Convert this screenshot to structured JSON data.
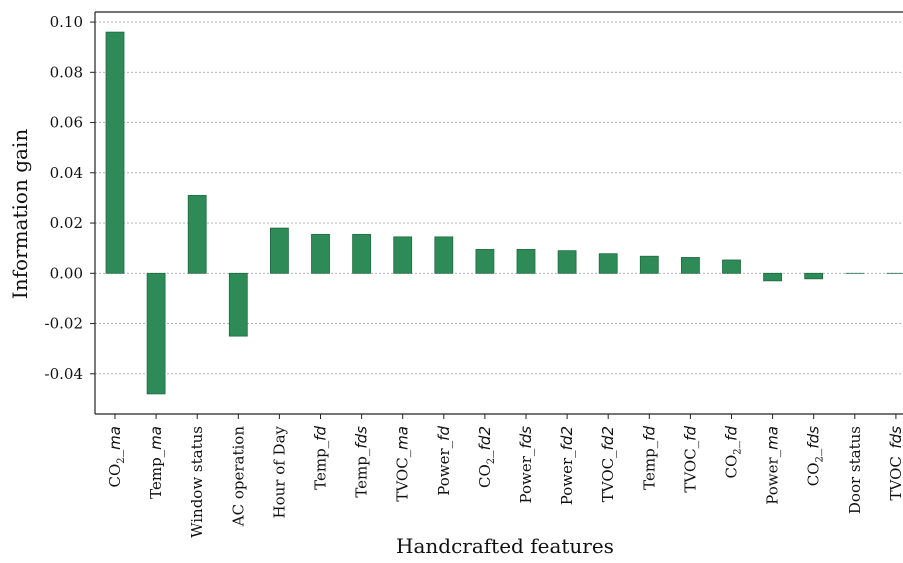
{
  "chart_data": {
    "type": "bar",
    "title": "",
    "xlabel": "Handcrafted features",
    "ylabel": "Information gain",
    "ylim": [
      -0.056,
      0.104
    ],
    "yticks": [
      "0.10",
      "0.08",
      "0.06",
      "0.04",
      "0.02",
      "0.00",
      "-0.02",
      "-0.04"
    ],
    "ytick_values": [
      0.1,
      0.08,
      0.06,
      0.04,
      0.02,
      0.0,
      -0.02,
      -0.04
    ],
    "grid": "horizontal dotted",
    "bar_color": "#2e8b57",
    "bar_edge_color": "#1f6b40",
    "categories": [
      {
        "label": "CO",
        "sub": "2",
        "suffix": "_ma",
        "italic_part": "ma"
      },
      {
        "label": "Temp_",
        "sub": "",
        "suffix": "",
        "italic_part": "ma"
      },
      {
        "label": "Window status",
        "sub": "",
        "suffix": "",
        "italic_part": ""
      },
      {
        "label": "AC operation",
        "sub": "",
        "suffix": "",
        "italic_part": ""
      },
      {
        "label": "Hour of Day",
        "sub": "",
        "suffix": "",
        "italic_part": ""
      },
      {
        "label": "Temp_",
        "sub": "",
        "suffix": "",
        "italic_part": "fd"
      },
      {
        "label": "Temp_",
        "sub": "",
        "suffix": "",
        "italic_part": "fds"
      },
      {
        "label": "TVOC_",
        "sub": "",
        "suffix": "",
        "italic_part": "ma"
      },
      {
        "label": "Power_",
        "sub": "",
        "suffix": "",
        "italic_part": "fd"
      },
      {
        "label": "CO",
        "sub": "2",
        "suffix": "_",
        "italic_part": "fd2"
      },
      {
        "label": "Power_",
        "sub": "",
        "suffix": "",
        "italic_part": "fds"
      },
      {
        "label": "Power_",
        "sub": "",
        "suffix": "",
        "italic_part": "fd2"
      },
      {
        "label": "TVOC_",
        "sub": "",
        "suffix": "",
        "italic_part": "fd2"
      },
      {
        "label": "Temp_",
        "sub": "",
        "suffix": "",
        "italic_part": "fd"
      },
      {
        "label": "TVOC_",
        "sub": "",
        "suffix": "",
        "italic_part": "fd"
      },
      {
        "label": "CO",
        "sub": "2",
        "suffix": "_",
        "italic_part": "fd"
      },
      {
        "label": "Power_",
        "sub": "",
        "suffix": "",
        "italic_part": "ma"
      },
      {
        "label": "CO",
        "sub": "2",
        "suffix": "_",
        "italic_part": "fds"
      },
      {
        "label": "Door status",
        "sub": "",
        "suffix": "",
        "italic_part": ""
      },
      {
        "label": "TVOC_",
        "sub": "",
        "suffix": "",
        "italic_part": "fds"
      }
    ],
    "values": [
      0.096,
      -0.048,
      0.031,
      -0.025,
      0.018,
      0.0155,
      0.0155,
      0.0145,
      0.0145,
      0.0095,
      0.0095,
      0.009,
      0.0078,
      0.0068,
      0.0063,
      0.0053,
      -0.003,
      -0.0022,
      0.0,
      0.0
    ]
  }
}
